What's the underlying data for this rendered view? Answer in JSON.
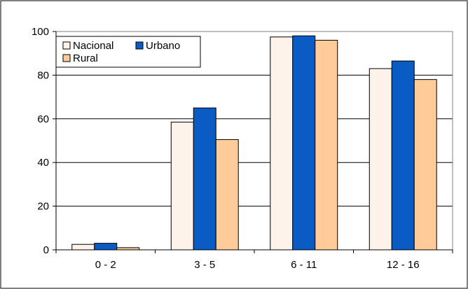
{
  "chart_data": {
    "type": "bar",
    "title": "",
    "xlabel": "",
    "ylabel": "",
    "categories": [
      "0 - 2",
      "3 - 5",
      "6 - 11",
      "12 - 16"
    ],
    "series": [
      {
        "name": "Nacional",
        "values": [
          2.5,
          58.5,
          97.5,
          83
        ],
        "color": "#FDF3EA"
      },
      {
        "name": "Urbano",
        "values": [
          3,
          65,
          98,
          86.5
        ],
        "color": "#0A5BC4"
      },
      {
        "name": "Rural",
        "values": [
          1,
          50.5,
          96,
          78
        ],
        "color": "#FFCC99"
      }
    ],
    "ylim": [
      0,
      100
    ],
    "yticks": [
      "0",
      "20",
      "40",
      "60",
      "80",
      "100"
    ],
    "grid": true,
    "legend_position": "top-left"
  }
}
